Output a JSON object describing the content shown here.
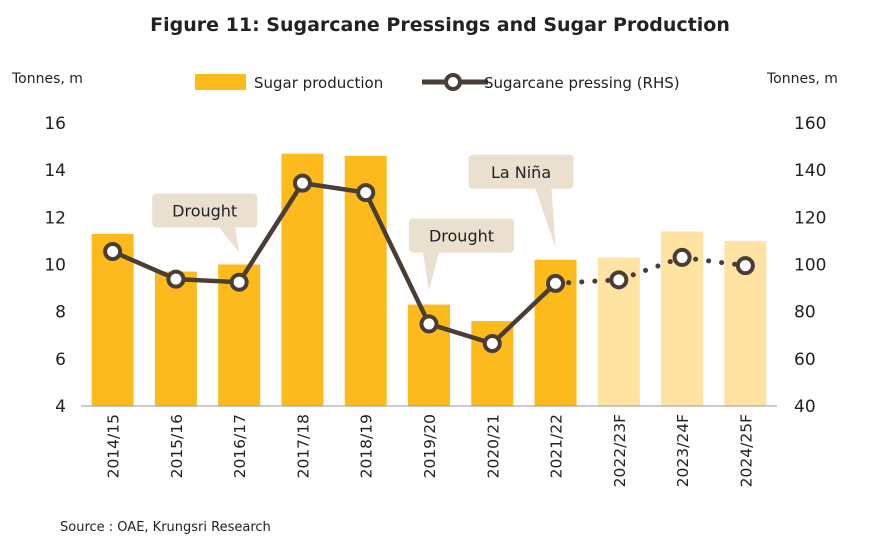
{
  "chart_data": {
    "type": "bar+line",
    "title": "Figure 11: Sugarcane Pressings and Sugar Production",
    "left_axis_label": "Tonnes, m",
    "right_axis_label": "Tonnes, m",
    "categories": [
      "2014/15",
      "2015/16",
      "2016/17",
      "2017/18",
      "2018/19",
      "2019/20",
      "2020/21",
      "2021/22",
      "2022/23F",
      "2023/24F",
      "2024/25F"
    ],
    "left_ylim": [
      4,
      16
    ],
    "left_yticks": [
      "4",
      "6",
      "8",
      "10",
      "12",
      "14",
      "16"
    ],
    "right_ylim": [
      40,
      160
    ],
    "right_yticks": [
      "40",
      "60",
      "80",
      "100",
      "120",
      "140",
      "160"
    ],
    "series": [
      {
        "name": "Sugar production",
        "type": "bar",
        "axis": "left",
        "values": [
          11.3,
          9.7,
          10.0,
          14.7,
          14.6,
          8.3,
          7.6,
          10.2,
          10.3,
          11.4,
          11.0
        ],
        "color_actual": "#FDBA1C",
        "color_forecast": "#FEE3A2"
      },
      {
        "name": "Sugarcane pressing (RHS)",
        "type": "line",
        "axis": "right",
        "values": [
          105.5,
          93.8,
          92.5,
          134.5,
          130.5,
          74.8,
          66.5,
          92.0,
          93.5,
          103.0,
          99.5
        ],
        "color": "#4A3D36"
      }
    ],
    "forecast_start_index": 8,
    "annotations": [
      {
        "text": "Drought",
        "category": "2016/17"
      },
      {
        "text": "Drought",
        "category": "2019/20"
      },
      {
        "text": "La Niña",
        "category": "2021/22"
      }
    ],
    "source": "Source : OAE, Krungsri Research",
    "legend_position": "top"
  }
}
